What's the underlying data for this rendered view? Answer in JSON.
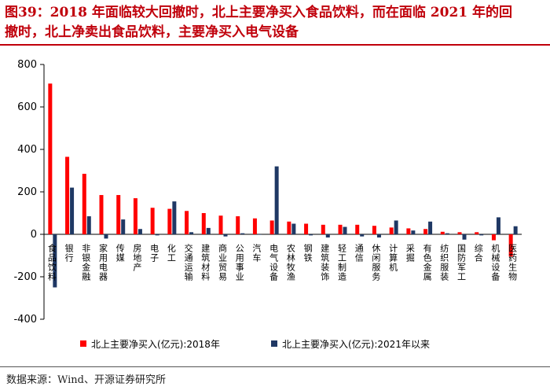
{
  "header": {
    "title_line1": "图39：2018 年面临较大回撤时，北上主要净买入食品饮料，而在面临 2021 年的回",
    "title_line2": "撤时，北上净卖出食品饮料，主要净买入电气设备"
  },
  "footer": {
    "source": "数据来源：Wind、开源证券研究所"
  },
  "colors": {
    "accent": "#c0000b",
    "series_2018": "#ff0000",
    "series_2021": "#1f3864"
  },
  "chart_data": {
    "type": "bar",
    "title": "",
    "xlabel": "",
    "ylabel": "",
    "ylim": [
      -400,
      800
    ],
    "yticks": [
      -400,
      -200,
      0,
      200,
      400,
      600,
      800
    ],
    "grid": false,
    "legend_position": "bottom",
    "categories": [
      "食品饮料",
      "银行",
      "非银金融",
      "家用电器",
      "传媒",
      "房地产",
      "电子",
      "化工",
      "交通运输",
      "建筑材料",
      "商业贸易",
      "公用事业",
      "汽车",
      "电气设备",
      "农林牧渔",
      "钢铁",
      "建筑装饰",
      "轻工制造",
      "通信",
      "休闲服务",
      "计算机",
      "采掘",
      "有色金属",
      "纺织服装",
      "国防军工",
      "综合",
      "机械设备",
      "医药生物"
    ],
    "series": [
      {
        "name": "北上主要净买入(亿元):2018年",
        "values": [
          710,
          365,
          285,
          185,
          185,
          170,
          125,
          120,
          110,
          100,
          88,
          85,
          75,
          65,
          60,
          50,
          45,
          45,
          45,
          40,
          32,
          28,
          25,
          12,
          10,
          10,
          -28,
          -105
        ]
      },
      {
        "name": "北上主要净买入(亿元):2021年以来",
        "values": [
          -250,
          220,
          85,
          -20,
          70,
          25,
          -5,
          155,
          10,
          30,
          -10,
          5,
          0,
          320,
          50,
          -5,
          -15,
          35,
          -10,
          -15,
          65,
          18,
          60,
          5,
          -25,
          -5,
          80,
          38
        ]
      }
    ]
  }
}
